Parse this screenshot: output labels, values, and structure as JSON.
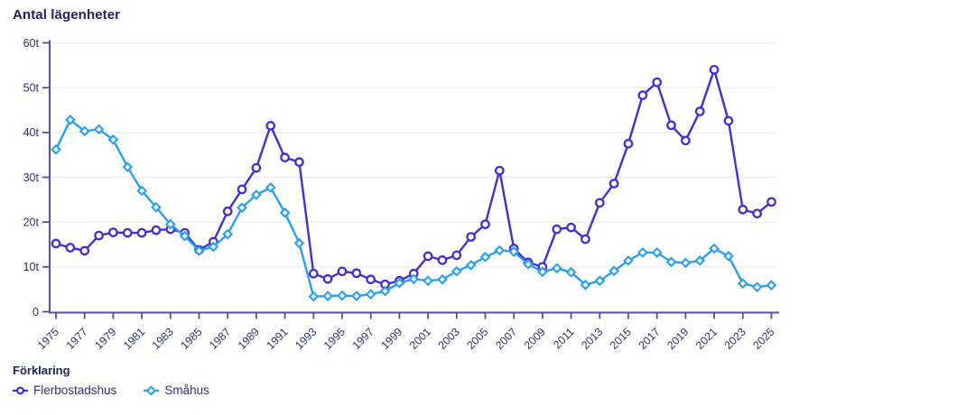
{
  "chart": {
    "title": "Antal lägenheter",
    "legend": {
      "title": "Förklaring",
      "items": [
        {
          "label": "Flerbostadshus",
          "marker": "circle",
          "color": "#4231d0"
        },
        {
          "label": "Småhus",
          "marker": "diamond",
          "color": "#2b9ff0"
        }
      ]
    }
  },
  "chart_data": {
    "type": "line",
    "title": "Antal lägenheter",
    "xlabel": "",
    "ylabel": "Antal lägenheter",
    "ylim": [
      0,
      60
    ],
    "ytick_labels": [
      "0",
      "10t",
      "20t",
      "30t",
      "40t",
      "50t",
      "60t"
    ],
    "xtick_step": 2,
    "grid": true,
    "legend_position": "bottom",
    "colors": {
      "grid": "#e8e8f0",
      "axis": "#55519b",
      "tick_label": "#2f2d7a",
      "marker_fill": "#ffffff"
    },
    "x": [
      1975,
      1976,
      1977,
      1978,
      1979,
      1980,
      1981,
      1982,
      1983,
      1984,
      1985,
      1986,
      1987,
      1988,
      1989,
      1990,
      1991,
      1992,
      1993,
      1994,
      1995,
      1996,
      1997,
      1998,
      1999,
      2000,
      2001,
      2002,
      2003,
      2004,
      2005,
      2006,
      2007,
      2008,
      2009,
      2010,
      2011,
      2012,
      2013,
      2014,
      2015,
      2016,
      2017,
      2018,
      2019,
      2020,
      2021,
      2022,
      2023,
      2024,
      2025
    ],
    "series": [
      {
        "name": "Flerbostadshus",
        "color": "#4231d0",
        "marker": "circle",
        "values": [
          15.2,
          14.3,
          13.6,
          17.0,
          17.7,
          17.6,
          17.6,
          18.2,
          18.4,
          17.6,
          13.8,
          15.6,
          22.4,
          27.3,
          32.1,
          41.5,
          34.4,
          33.4,
          8.5,
          7.3,
          9.0,
          8.6,
          7.2,
          6.1,
          6.9,
          8.5,
          12.4,
          11.5,
          12.6,
          16.7,
          19.5,
          31.5,
          14.1,
          11.0,
          10.0,
          18.4,
          18.8,
          16.2,
          24.3,
          28.6,
          37.5,
          48.3,
          51.2,
          41.6,
          38.2,
          44.7,
          54.0,
          42.6,
          22.8,
          21.9,
          24.5
        ]
      },
      {
        "name": "Småhus",
        "color": "#2b9ff0",
        "marker": "diamond",
        "values": [
          36.2,
          42.8,
          40.3,
          40.7,
          38.4,
          32.3,
          27.0,
          23.3,
          19.5,
          16.9,
          13.6,
          14.5,
          17.3,
          23.2,
          26.1,
          27.7,
          22.1,
          15.3,
          3.4,
          3.5,
          3.6,
          3.5,
          3.9,
          4.6,
          6.4,
          7.3,
          6.9,
          7.2,
          9.0,
          10.4,
          12.2,
          13.7,
          13.4,
          10.6,
          8.9,
          9.7,
          8.8,
          6.0,
          6.9,
          9.1,
          11.4,
          13.2,
          13.2,
          11.1,
          10.9,
          11.4,
          14.1,
          12.4,
          6.3,
          5.5,
          5.9
        ]
      }
    ]
  }
}
